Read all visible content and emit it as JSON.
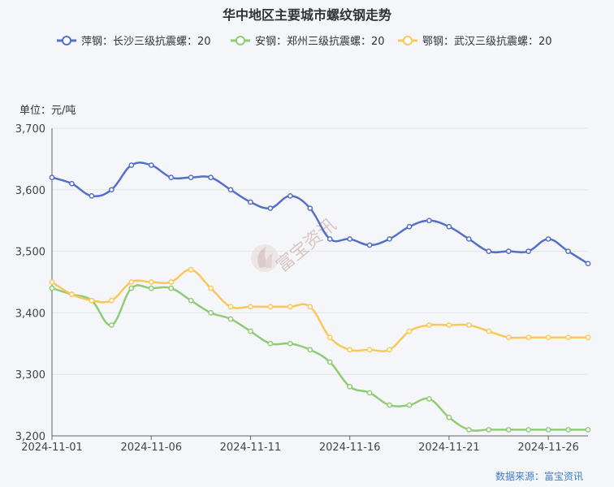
{
  "chart_data": {
    "type": "line",
    "title": "华中地区主要城市螺纹钢走势",
    "unit_label": "单位：元/吨",
    "source": "数据来源：富宝资讯",
    "watermark": "富宝资讯",
    "ylim": [
      3200,
      3700
    ],
    "yticks": [
      3200,
      3300,
      3400,
      3500,
      3600,
      3700
    ],
    "ytick_labels": [
      "3,200",
      "3,300",
      "3,400",
      "3,500",
      "3,600",
      "3,700"
    ],
    "xlim": [
      "2024-11-01",
      "2024-11-28"
    ],
    "xticks": [
      "2024-11-01",
      "2024-11-06",
      "2024-11-11",
      "2024-11-16",
      "2024-11-21",
      "2024-11-26"
    ],
    "grid": true,
    "legend_position": "top",
    "dates": [
      "2024-11-01",
      "2024-11-02",
      "2024-11-03",
      "2024-11-04",
      "2024-11-05",
      "2024-11-06",
      "2024-11-07",
      "2024-11-08",
      "2024-11-09",
      "2024-11-10",
      "2024-11-11",
      "2024-11-12",
      "2024-11-13",
      "2024-11-14",
      "2024-11-15",
      "2024-11-16",
      "2024-11-17",
      "2024-11-18",
      "2024-11-19",
      "2024-11-20",
      "2024-11-21",
      "2024-11-22",
      "2024-11-23",
      "2024-11-24",
      "2024-11-25",
      "2024-11-26",
      "2024-11-27",
      "2024-11-28"
    ],
    "series": [
      {
        "name": "萍钢：长沙三级抗震螺：20",
        "color": "#5470c6",
        "values": [
          3620,
          3610,
          3590,
          3600,
          3640,
          3640,
          3620,
          3620,
          3620,
          3600,
          3580,
          3570,
          3590,
          3570,
          3520,
          3520,
          3510,
          3520,
          3540,
          3550,
          3540,
          3520,
          3500,
          3500,
          3500,
          3520,
          3500,
          3480
        ]
      },
      {
        "name": "安钢：郑州三级抗震螺：20",
        "color": "#91cc75",
        "values": [
          3440,
          3430,
          3420,
          3380,
          3440,
          3440,
          3440,
          3420,
          3400,
          3390,
          3370,
          3350,
          3350,
          3340,
          3320,
          3280,
          3270,
          3250,
          3250,
          3260,
          3230,
          3210,
          3210,
          3210,
          3210,
          3210,
          3210,
          3210
        ]
      },
      {
        "name": "鄂钢：武汉三级抗震螺：20",
        "color": "#fac858",
        "values": [
          3450,
          3430,
          3420,
          3420,
          3450,
          3450,
          3450,
          3470,
          3440,
          3410,
          3410,
          3410,
          3410,
          3410,
          3360,
          3340,
          3340,
          3340,
          3370,
          3380,
          3380,
          3380,
          3370,
          3360,
          3360,
          3360,
          3360,
          3360
        ]
      }
    ]
  }
}
